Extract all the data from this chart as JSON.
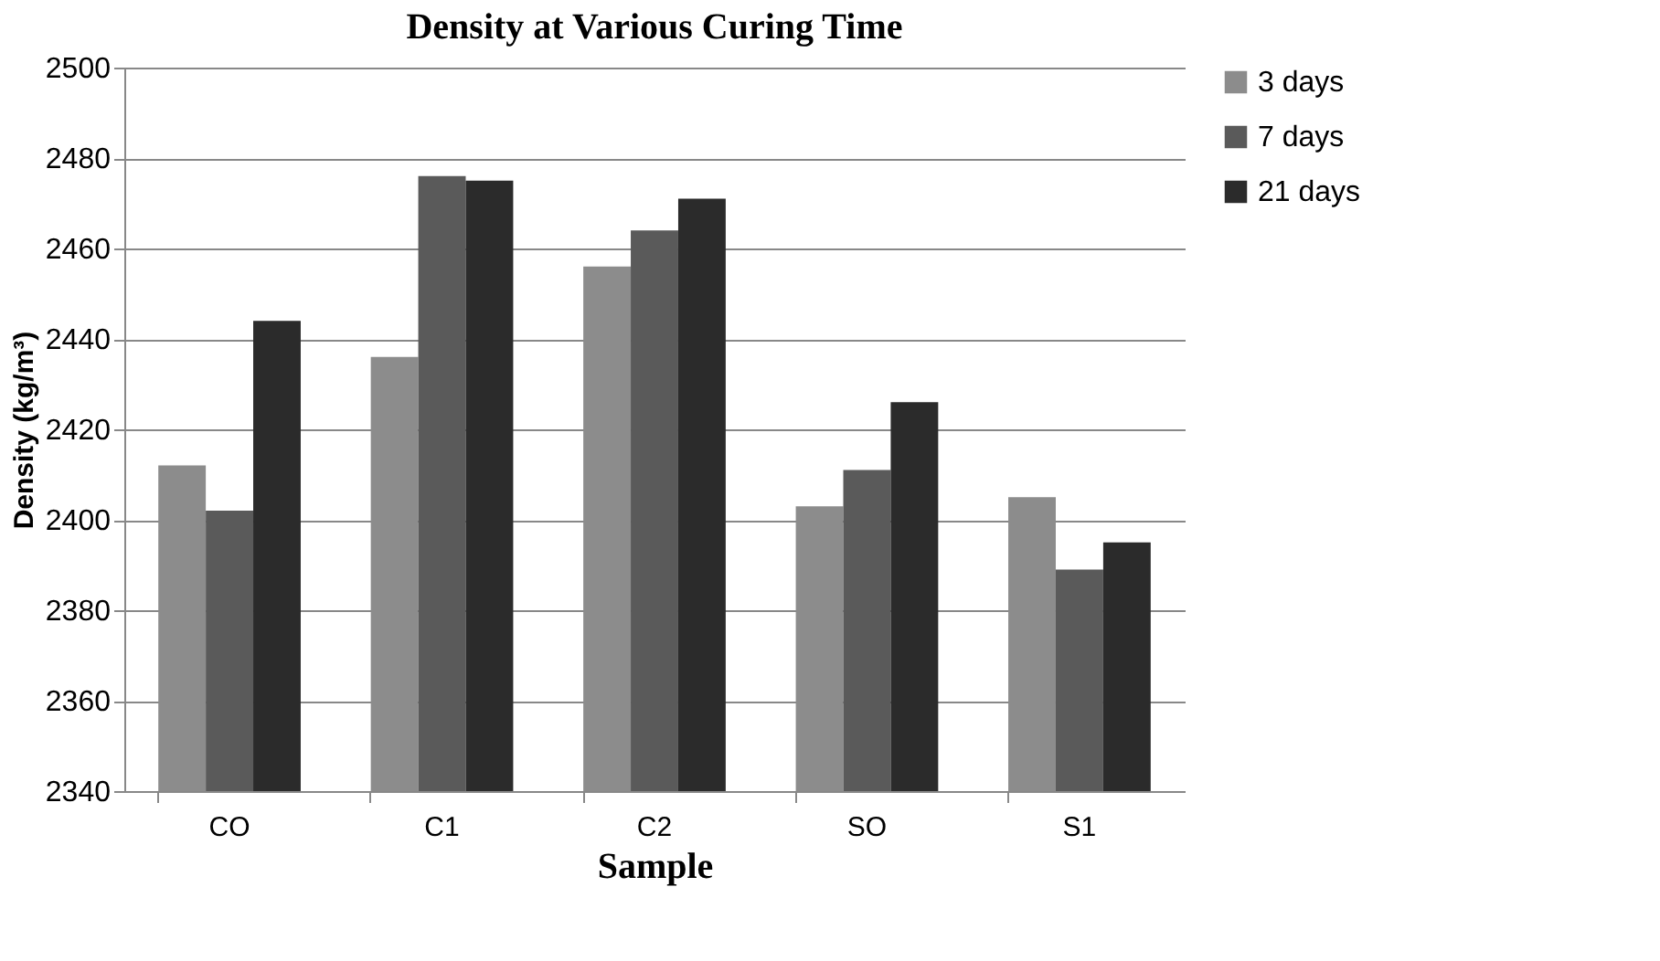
{
  "chart_data": {
    "type": "bar",
    "title": "Density at Various Curing Time",
    "xlabel": "Sample",
    "ylabel": "Density (kg/m³)",
    "categories": [
      "CO",
      "C1",
      "C2",
      "SO",
      "S1"
    ],
    "series": [
      {
        "name": "3 days",
        "color": "#8c8c8c",
        "values": [
          2412,
          2436,
          2456,
          2403,
          2405
        ]
      },
      {
        "name": "7 days",
        "color": "#5a5a5a",
        "values": [
          2402,
          2476,
          2464,
          2411,
          2389
        ]
      },
      {
        "name": "21 days",
        "color": "#2b2b2b",
        "values": [
          2444,
          2475,
          2471,
          2426,
          2395
        ]
      }
    ],
    "ylim": [
      2340,
      2500
    ],
    "yticks": [
      2340,
      2360,
      2380,
      2400,
      2420,
      2440,
      2460,
      2480,
      2500
    ],
    "grid": "y",
    "legend": "right"
  }
}
